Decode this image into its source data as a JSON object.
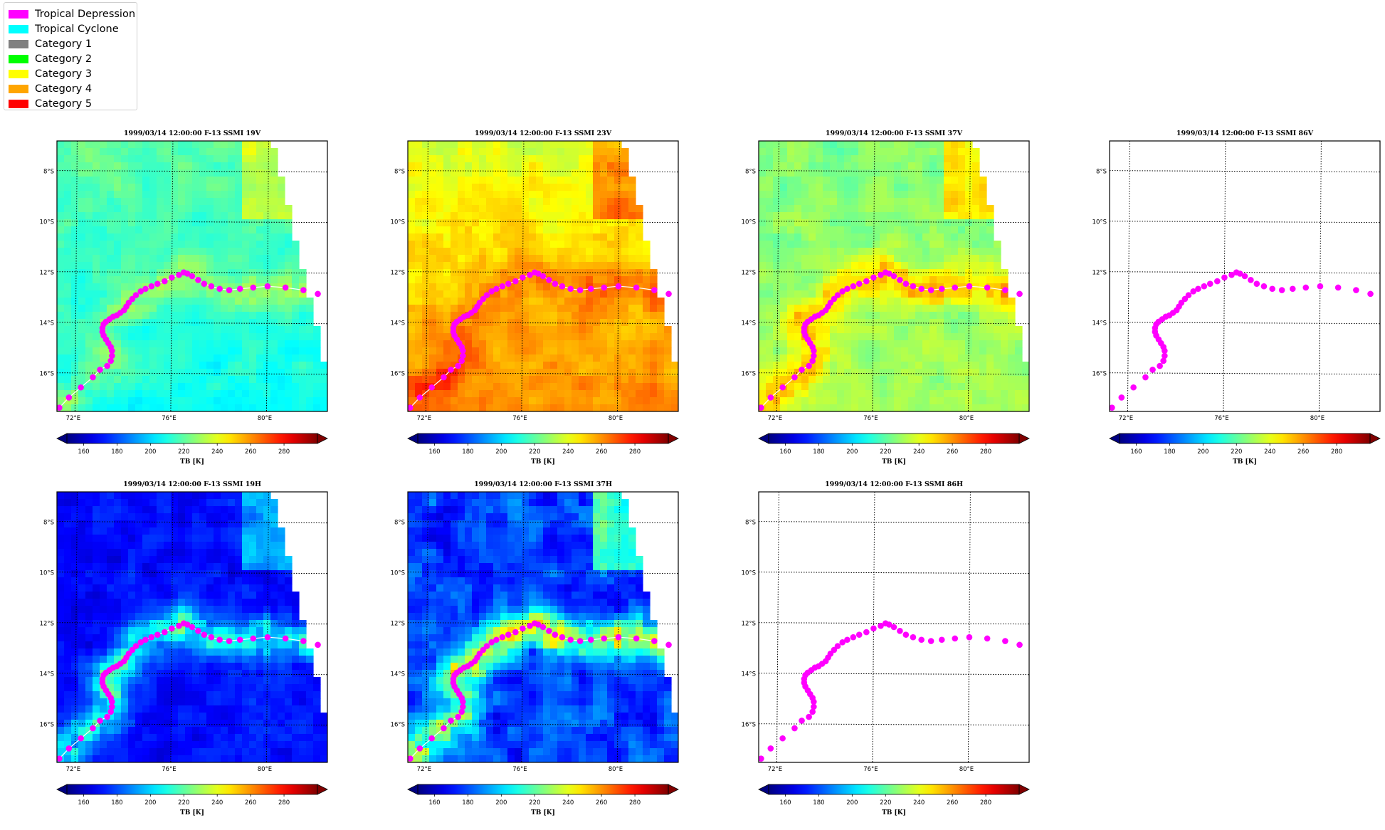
{
  "legend": {
    "items": [
      {
        "label": "Tropical Depression",
        "color": "#ff00ff"
      },
      {
        "label": "Tropical Cyclone",
        "color": "#00ffff"
      },
      {
        "label": "Category 1",
        "color": "#808080"
      },
      {
        "label": "Category 2",
        "color": "#00ff00"
      },
      {
        "label": "Category 3",
        "color": "#ffff00"
      },
      {
        "label": "Category 4",
        "color": "#ffa500"
      },
      {
        "label": "Category 5",
        "color": "#ff0000"
      }
    ]
  },
  "chart_data": [
    {
      "type": "heatmap",
      "title": "1999/03/14 12:00:00  F-13 SSMI 19V",
      "field": "19V",
      "base_tb": 214
    },
    {
      "type": "heatmap",
      "title": "1999/03/14 12:00:00  F-13 SSMI 23V",
      "field": "23V",
      "base_tb": 250
    },
    {
      "type": "heatmap",
      "title": "1999/03/14 12:00:00  F-13 SSMI 37V",
      "field": "37V",
      "base_tb": 228
    },
    {
      "type": "heatmap",
      "title": "1999/03/14 12:00:00  F-13 SSMI 86V",
      "field": "86V",
      "base_tb": null
    },
    {
      "type": "heatmap",
      "title": "1999/03/14 12:00:00  F-13 SSMI 19H",
      "field": "19H",
      "base_tb": 170
    },
    {
      "type": "heatmap",
      "title": "1999/03/14 12:00:00  F-13 SSMI 37H",
      "field": "37H",
      "base_tb": 178
    },
    {
      "type": "heatmap",
      "title": "1999/03/14 12:00:00  F-13 SSMI 86H",
      "field": "86H",
      "base_tb": null
    }
  ],
  "map": {
    "lon_range": [
      71.2,
      82.5
    ],
    "lat_range": [
      -17.5,
      -6.8
    ],
    "lon_ticks": [
      72,
      76,
      80
    ],
    "lon_tick_labels": [
      "72°E",
      "76°E",
      "80°E"
    ],
    "lat_ticks": [
      -8,
      -10,
      -12,
      -14,
      -16
    ],
    "lat_tick_labels": [
      "8°S",
      "10°S",
      "12°S",
      "14°S",
      "16°S"
    ],
    "grid": true,
    "swath_edge": [
      [
        80.2,
        -6.8
      ],
      [
        82.5,
        -16.0
      ]
    ]
  },
  "colorbar": {
    "vmin": 150,
    "vmax": 300,
    "extend": "both",
    "ticks": [
      160,
      180,
      200,
      220,
      240,
      260,
      280
    ],
    "tick_labels": [
      "160",
      "180",
      "200",
      "220",
      "240",
      "260",
      "280"
    ],
    "label": "TB [K]",
    "colormap": "jet"
  },
  "track": {
    "category": "Tropical Depression",
    "color": "#ff00ff",
    "points": [
      [
        71.3,
        -17.35
      ],
      [
        71.7,
        -16.95
      ],
      [
        72.2,
        -16.55
      ],
      [
        72.7,
        -16.15
      ],
      [
        73.0,
        -15.85
      ],
      [
        73.3,
        -15.7
      ],
      [
        73.45,
        -15.5
      ],
      [
        73.5,
        -15.3
      ],
      [
        73.5,
        -15.1
      ],
      [
        73.45,
        -14.95
      ],
      [
        73.35,
        -14.8
      ],
      [
        73.25,
        -14.65
      ],
      [
        73.15,
        -14.5
      ],
      [
        73.1,
        -14.35
      ],
      [
        73.1,
        -14.2
      ],
      [
        73.15,
        -14.05
      ],
      [
        73.25,
        -13.95
      ],
      [
        73.4,
        -13.85
      ],
      [
        73.55,
        -13.75
      ],
      [
        73.7,
        -13.7
      ],
      [
        73.85,
        -13.6
      ],
      [
        74.0,
        -13.5
      ],
      [
        74.1,
        -13.35
      ],
      [
        74.2,
        -13.2
      ],
      [
        74.35,
        -13.05
      ],
      [
        74.5,
        -12.9
      ],
      [
        74.7,
        -12.75
      ],
      [
        74.9,
        -12.65
      ],
      [
        75.15,
        -12.55
      ],
      [
        75.4,
        -12.45
      ],
      [
        75.7,
        -12.35
      ],
      [
        76.0,
        -12.2
      ],
      [
        76.3,
        -12.1
      ],
      [
        76.5,
        -12.0
      ],
      [
        76.65,
        -12.05
      ],
      [
        76.85,
        -12.15
      ],
      [
        77.1,
        -12.3
      ],
      [
        77.35,
        -12.45
      ],
      [
        77.65,
        -12.55
      ],
      [
        78.0,
        -12.65
      ],
      [
        78.4,
        -12.7
      ],
      [
        78.85,
        -12.65
      ],
      [
        79.4,
        -12.6
      ],
      [
        80.0,
        -12.55
      ],
      [
        80.75,
        -12.6
      ],
      [
        81.5,
        -12.7
      ],
      [
        82.1,
        -12.85
      ],
      [
        82.7,
        -12.95
      ]
    ]
  }
}
